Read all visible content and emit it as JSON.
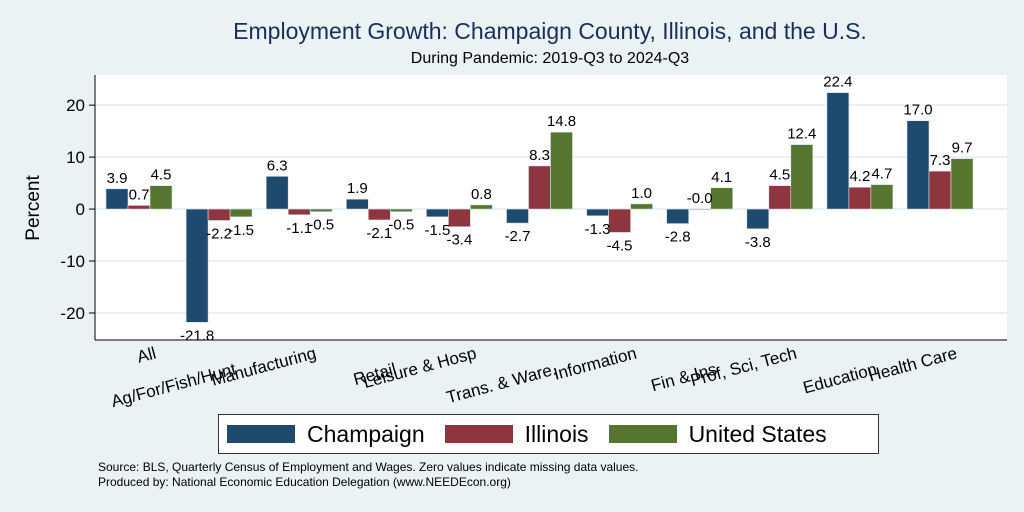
{
  "chart_data": {
    "type": "bar",
    "title": "Employment Growth: Champaign County, Illinois, and the U.S.",
    "subtitle": "During Pandemic: 2019-Q3 to 2024-Q3",
    "xlabel": "",
    "ylabel": "Percent",
    "ylim": [
      -25.2,
      25.8
    ],
    "yticks": [
      20,
      10,
      0,
      -10,
      -20
    ],
    "ytick_labels": [
      "20",
      "10",
      "0",
      "-10",
      "-20"
    ],
    "grid": true,
    "legend_position": "bottom",
    "categories": [
      "All",
      "Ag/For/Fish/Hunt",
      "Manufacturing",
      "Retail",
      "Leisure & Hosp",
      "Trans. & Ware.",
      "Information",
      "Fin & Ins",
      "Prof, Sci, Tech",
      "Education",
      "Health Care"
    ],
    "series": [
      {
        "name": "Champaign",
        "color": "#1f4a70",
        "values": [
          3.9,
          -21.8,
          6.3,
          1.9,
          -1.5,
          -2.7,
          -1.3,
          -2.8,
          -3.8,
          22.4,
          17.0
        ],
        "labels": [
          "3.9",
          "-21.8",
          "6.3",
          "1.9",
          "-1.5",
          "-2.7",
          "-1.3",
          "-2.8",
          "-3.8",
          "22.4",
          "17.0"
        ]
      },
      {
        "name": "Illinois",
        "color": "#8f3540",
        "values": [
          0.7,
          -2.2,
          -1.1,
          -2.1,
          -3.4,
          8.3,
          -4.5,
          -0.0,
          4.5,
          4.2,
          7.3
        ],
        "labels": [
          "0.7",
          "-2.2",
          "-1.1",
          "-2.1",
          "-3.4",
          "8.3",
          "-4.5",
          "-0.0",
          "4.5",
          "4.2",
          "7.3"
        ]
      },
      {
        "name": "United States",
        "color": "#56762f",
        "values": [
          4.5,
          -1.5,
          -0.5,
          -0.5,
          0.8,
          14.8,
          1.0,
          4.1,
          12.4,
          4.7,
          9.7
        ],
        "labels": [
          "4.5",
          "-1.5",
          "-0.5",
          "-0.5",
          "0.8",
          "14.8",
          "1.0",
          "4.1",
          "12.4",
          "4.7",
          "9.7"
        ]
      }
    ]
  },
  "footer": {
    "source": "Source: BLS, Quarterly Census of Employment and Wages. Zero values indicate missing data values.",
    "produced_by": "Produced by: National Economic Education Delegation (www.NEEDEcon.org)"
  }
}
